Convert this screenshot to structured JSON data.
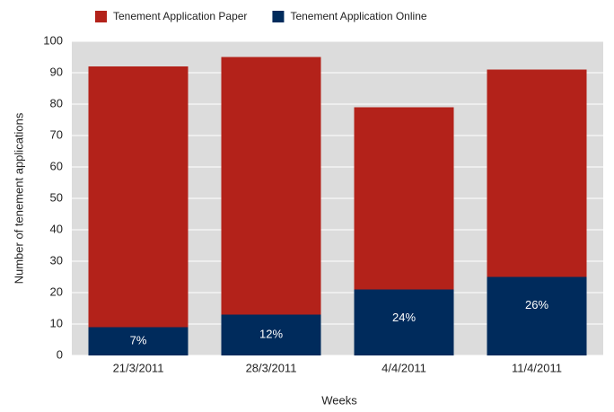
{
  "chart_data": {
    "type": "stacked_bar",
    "x_label": "Weeks",
    "y_label": "Number of tenement applications",
    "categories": [
      "21/3/2011",
      "28/3/2011",
      "4/4/2011",
      "11/4/2011"
    ],
    "series": [
      {
        "name": "Tenement Application Online",
        "color": "#002b5c",
        "values": [
          9,
          13,
          21,
          25
        ]
      },
      {
        "name": "Tenement Application Paper",
        "color": "#b3221a",
        "values": [
          83,
          82,
          58,
          66
        ]
      }
    ],
    "percent_labels": [
      "7%",
      "12%",
      "24%",
      "26%"
    ],
    "legend_order": [
      1,
      0
    ],
    "ylim": [
      0,
      100
    ],
    "yticks": [
      0,
      10,
      20,
      30,
      40,
      50,
      60,
      70,
      80,
      90,
      100
    ],
    "grid": true
  }
}
